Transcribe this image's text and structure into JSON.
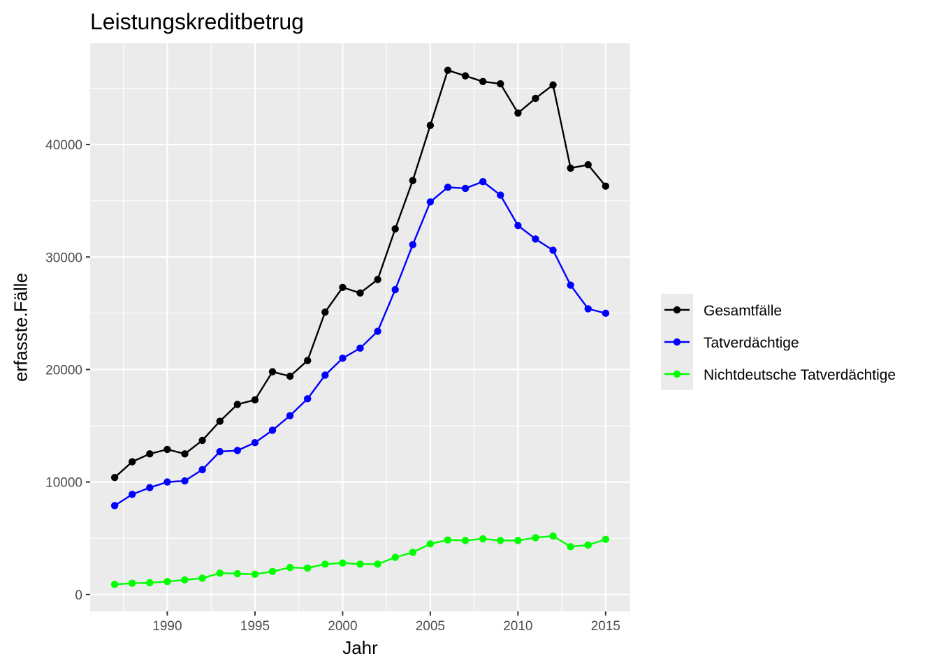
{
  "chart_data": {
    "type": "line",
    "title": "Leistungskreditbetrug",
    "xlabel": "Jahr",
    "ylabel": "erfasste.Fälle",
    "xlim": [
      1985.6,
      2016.4
    ],
    "ylim": [
      -1500,
      49000
    ],
    "x_ticks": [
      1990,
      1995,
      2000,
      2005,
      2010,
      2015
    ],
    "y_ticks": [
      0,
      10000,
      20000,
      30000,
      40000
    ],
    "x_tick_labels": [
      "1990",
      "1995",
      "2000",
      "2005",
      "2010",
      "2015"
    ],
    "y_tick_labels": [
      "0",
      "10000",
      "20000",
      "30000",
      "40000"
    ],
    "grid": true,
    "legend_position": "right",
    "x": [
      1987,
      1988,
      1989,
      1990,
      1991,
      1992,
      1993,
      1994,
      1995,
      1996,
      1997,
      1998,
      1999,
      2000,
      2001,
      2002,
      2003,
      2004,
      2005,
      2006,
      2007,
      2008,
      2009,
      2010,
      2011,
      2012,
      2013,
      2014,
      2015
    ],
    "series": [
      {
        "name": "Gesamtfälle",
        "color": "#000000",
        "values": [
          10400,
          11800,
          12500,
          12900,
          12500,
          13700,
          15400,
          16900,
          17300,
          19800,
          19400,
          20800,
          25100,
          27300,
          26800,
          28000,
          32500,
          36800,
          41700,
          46600,
          46100,
          45600,
          45400,
          42800,
          44100,
          45300,
          37900,
          38200,
          36300
        ]
      },
      {
        "name": "Tatverdächtige",
        "color": "#0000ff",
        "values": [
          7900,
          8900,
          9500,
          10000,
          10100,
          11100,
          12700,
          12800,
          13500,
          14600,
          15900,
          17400,
          19500,
          21000,
          21900,
          23400,
          27100,
          31100,
          34900,
          36200,
          36100,
          36700,
          35500,
          32800,
          31600,
          30600,
          27500,
          25400,
          25000
        ]
      },
      {
        "name": "Nichtdeutsche Tatverdächtige",
        "color": "#00ff00",
        "values": [
          900,
          1000,
          1050,
          1150,
          1300,
          1450,
          1900,
          1850,
          1800,
          2050,
          2400,
          2350,
          2700,
          2800,
          2700,
          2700,
          3300,
          3750,
          4500,
          4850,
          4800,
          4950,
          4800,
          4800,
          5050,
          5200,
          4250,
          4400,
          4900
        ]
      }
    ]
  }
}
